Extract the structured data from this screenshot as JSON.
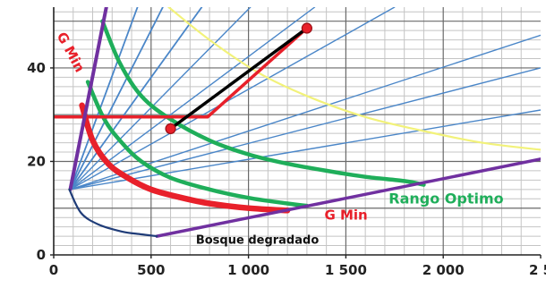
{
  "chart_data": {
    "type": "line",
    "xlim": [
      0,
      2500
    ],
    "ylim": [
      0,
      53
    ],
    "x_ticks": [
      0,
      500,
      1000,
      1500,
      2000,
      2500
    ],
    "x_tick_labels": [
      "0",
      "500",
      "1 000",
      "1 500",
      "2 000",
      "2 5"
    ],
    "y_ticks": [
      0,
      20,
      40
    ],
    "y_tick_labels": [
      "0",
      "20",
      "40"
    ],
    "grid": true,
    "colors": {
      "gmin": "#e8202a",
      "optimo": "#1fae5a",
      "degradado": "#7030a0",
      "yellow": "#f2f27a",
      "fan": "#4a86c8",
      "trajectory": "#000000",
      "base": "#1f3c78"
    },
    "series": [
      {
        "key": "fan1",
        "x": [
          85,
          430
        ],
        "y": [
          14,
          53
        ]
      },
      {
        "key": "fan2",
        "x": [
          85,
          560
        ],
        "y": [
          14,
          53
        ]
      },
      {
        "key": "fan3",
        "x": [
          85,
          760
        ],
        "y": [
          14,
          53
        ]
      },
      {
        "key": "fan4",
        "x": [
          85,
          1010
        ],
        "y": [
          14,
          53
        ]
      },
      {
        "key": "fan5",
        "x": [
          85,
          1340
        ],
        "y": [
          14,
          53
        ]
      },
      {
        "key": "fan6",
        "x": [
          85,
          1750
        ],
        "y": [
          14,
          53
        ]
      },
      {
        "key": "fan7",
        "x": [
          85,
          2500
        ],
        "y": [
          14,
          47
        ]
      },
      {
        "key": "fan8",
        "x": [
          85,
          2500
        ],
        "y": [
          14,
          40
        ]
      },
      {
        "key": "fan9",
        "x": [
          85,
          2500
        ],
        "y": [
          14,
          31
        ]
      },
      {
        "key": "yellow_curve",
        "x": [
          590,
          800,
          1050,
          1300,
          1600,
          1900,
          2200,
          2500
        ],
        "y": [
          53,
          46,
          39,
          34,
          29.5,
          26.5,
          24,
          22.5
        ]
      },
      {
        "key": "green_upper",
        "x": [
          250,
          340,
          450,
          600,
          800,
          1000,
          1200,
          1400,
          1600,
          1800,
          1900
        ],
        "y": [
          50,
          41,
          34,
          29,
          24.5,
          21.5,
          19.5,
          18,
          16.7,
          15.8,
          15
        ]
      },
      {
        "key": "green_lower",
        "x": [
          175,
          260,
          350,
          450,
          600,
          800,
          1000,
          1200,
          1300
        ],
        "y": [
          37,
          29,
          24,
          20,
          16.5,
          14,
          12.2,
          11,
          10.5
        ]
      },
      {
        "key": "red_curve",
        "x": [
          145,
          200,
          280,
          380,
          500,
          650,
          800,
          1000,
          1200
        ],
        "y": [
          32,
          24.5,
          19.5,
          16.5,
          14,
          12.3,
          11,
          10,
          9.5
        ]
      },
      {
        "key": "gmin_upper",
        "x": [
          0,
          790,
          1300
        ],
        "y": [
          29.5,
          29.5,
          48.5
        ]
      },
      {
        "key": "trajectory",
        "x": [
          600,
          1300
        ],
        "y": [
          27,
          48.5
        ]
      },
      {
        "key": "purple_steep",
        "x": [
          85,
          270
        ],
        "y": [
          14,
          53
        ]
      },
      {
        "key": "purple_bottom",
        "x": [
          530,
          2500
        ],
        "y": [
          4,
          20.5
        ]
      },
      {
        "key": "base_curve",
        "x": [
          80,
          140,
          230,
          350,
          450,
          530
        ],
        "y": [
          14,
          9,
          6.5,
          5,
          4.4,
          4
        ]
      }
    ],
    "points": [
      {
        "x": 600,
        "y": 27
      },
      {
        "x": 1300,
        "y": 48.5
      }
    ],
    "annotations": [
      {
        "text": "G Min",
        "x": 15,
        "y": 47,
        "rotate": 62,
        "color": "#e8202a",
        "size": 15
      },
      {
        "text": "G Min",
        "x": 1390,
        "y": 7.6,
        "rotate": 0,
        "color": "#e8202a",
        "size": 15
      },
      {
        "text": "Rango Optimo",
        "x": 1720,
        "y": 11,
        "rotate": 0,
        "color": "#1fae5a",
        "size": 16
      },
      {
        "text": "Bosque degradado",
        "x": 730,
        "y": 2.4,
        "rotate": 0,
        "color": "#111111",
        "size": 13
      }
    ]
  }
}
